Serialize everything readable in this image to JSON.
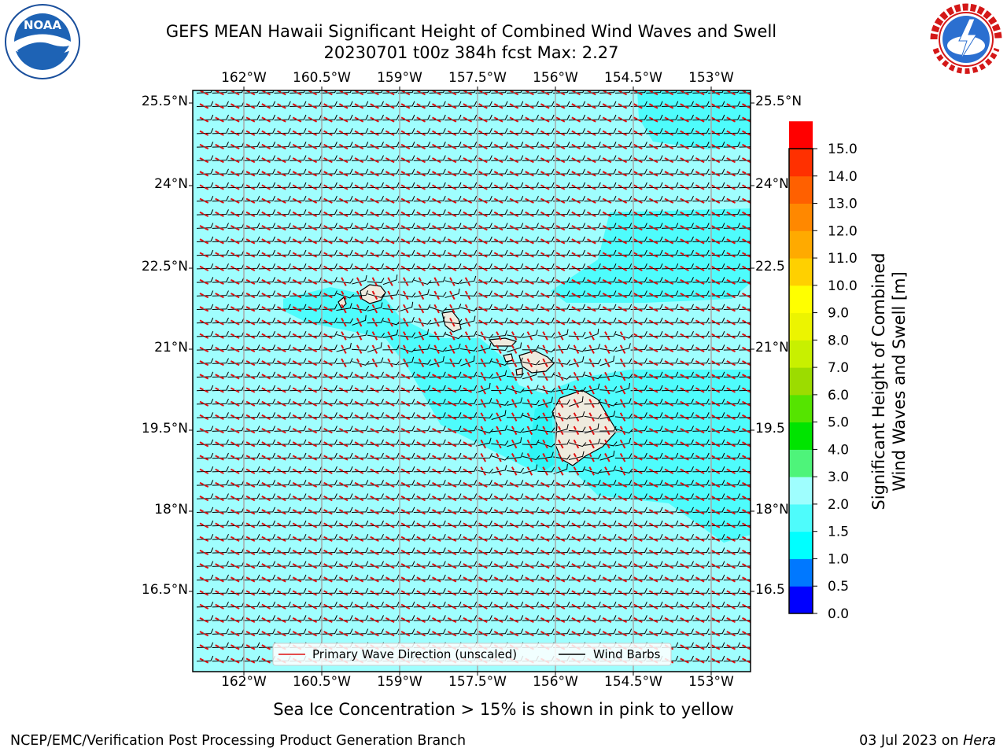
{
  "header": {
    "title_line1": "GEFS MEAN Hawaii Significant Height of Combined Wind Waves and Swell",
    "title_line2": "20230701 t00z 384h fcst   Max: 2.27"
  },
  "logos": {
    "left": "NOAA",
    "left_ring_text": "NATIONAL OCEANIC AND ATMOSPHERIC ADMINISTRATION · U.S. DEPARTMENT OF COMMERCE",
    "right_ring_text": "NATIONAL WEATHER SERVICE"
  },
  "map": {
    "lon_ticks": [
      "162°W",
      "160.5°W",
      "159°W",
      "157.5°W",
      "156°W",
      "154.5°W",
      "153°W"
    ],
    "lat_ticks_left": [
      "25.5°N",
      "24°N",
      "22.5°N",
      "21°N",
      "19.5°N",
      "18°N",
      "16.5°N"
    ],
    "lat_ticks_right": [
      "25.5°N",
      "24°N",
      "22.5",
      "21°N",
      "19.5",
      "18°N",
      "16.5"
    ],
    "field_max": 2.27,
    "colors": {
      "ocean_light": "#9ffefe",
      "ocean_mid": "#4efcfc",
      "land": "#efebde",
      "wave_dir": "#e01010",
      "barb": "#000000"
    }
  },
  "legend": {
    "wave_label": "Primary Wave Direction (unscaled)",
    "barb_label": "Wind Barbs"
  },
  "colorbar": {
    "label_line1": "Significant Height of Combined",
    "label_line2": "Wind Waves and Swell [m]",
    "ticks": [
      "15.0",
      "14.0",
      "13.0",
      "12.0",
      "11.0",
      "10.0",
      "9.0",
      "8.0",
      "7.0",
      "6.0",
      "5.0",
      "4.0",
      "3.0",
      "2.0",
      "1.5",
      "1.0",
      "0.5",
      "0.0"
    ],
    "colors": [
      "#0000ff",
      "#0078ff",
      "#00ffff",
      "#4efcfc",
      "#9ffefe",
      "#4ef47a",
      "#00e400",
      "#55e400",
      "#9cdc00",
      "#c8f000",
      "#ecf400",
      "#ffff00",
      "#ffd000",
      "#ffaa00",
      "#ff8800",
      "#ff6000",
      "#ff3000",
      "#ff0000"
    ]
  },
  "caption": "Sea Ice Concentration > 15% is shown in pink to yellow",
  "footer": {
    "left": "NCEP/EMC/Verification Post Processing Product Generation Branch",
    "right_prefix": "03 Jul 2023 on ",
    "right_host": "Hera"
  }
}
